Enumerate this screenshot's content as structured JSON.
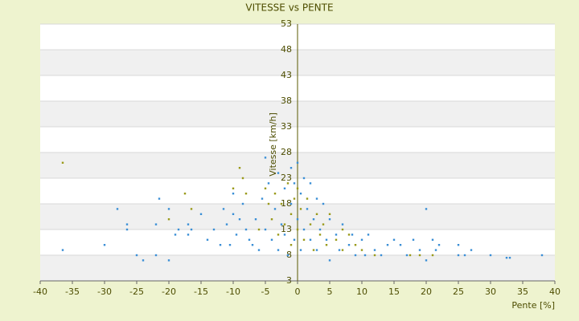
{
  "chart_data": {
    "type": "scatter",
    "title": "VITESSE vs PENTE",
    "x_label": "Pente [%]",
    "y_label": "Vitesse [km/h]",
    "xlim": [
      -40,
      40
    ],
    "xticks": [
      -40,
      -35,
      -30,
      -25,
      -20,
      -15,
      -10,
      -5,
      0,
      5,
      10,
      15,
      20,
      25,
      30,
      35,
      40
    ],
    "ylim": [
      3,
      53
    ],
    "yticks": [
      3,
      8,
      13,
      18,
      23,
      28,
      33,
      38,
      43,
      48,
      53
    ],
    "grid": true,
    "series": [
      {
        "color": "#3a8fd6",
        "x": [
          -36.5,
          -30,
          -28,
          -26.5,
          -26.5,
          -25,
          -24,
          -22,
          -22,
          -21.5,
          -20,
          -20,
          -19,
          -18.5,
          -17,
          -17,
          -16.5,
          -15,
          -14,
          -13,
          -12,
          -11.5,
          -11,
          -10.5,
          -10,
          -10,
          -9.5,
          -9,
          -8.5,
          -8,
          -7.5,
          -7,
          -6.5,
          -6,
          -5.5,
          -5,
          -5,
          -4.5,
          -4,
          -3.5,
          -3,
          -3,
          -2.5,
          -2,
          -2,
          -1.5,
          -1,
          -1,
          -0.5,
          -0.5,
          0,
          0,
          0.5,
          0.5,
          1,
          1,
          1.5,
          2,
          2,
          2.5,
          3,
          3,
          3.5,
          4,
          4.5,
          5,
          5,
          6,
          6.5,
          7,
          8,
          8.5,
          9,
          10,
          10.5,
          11,
          12,
          13,
          14,
          15,
          16,
          17,
          18,
          19,
          20,
          20,
          21,
          21.5,
          22,
          25,
          25,
          26,
          27,
          30,
          32.5,
          33,
          38
        ],
        "values": [
          9,
          10,
          17,
          14,
          13,
          8,
          7,
          14,
          8,
          19,
          7,
          17,
          12,
          13,
          14,
          12,
          13,
          16,
          11,
          13,
          10,
          17,
          14,
          10,
          20,
          16,
          12,
          15,
          18,
          13,
          11,
          10,
          15,
          9,
          19,
          27,
          13,
          22,
          11,
          17,
          24,
          9,
          14,
          21,
          12,
          8,
          25,
          18,
          22,
          11,
          26,
          15,
          20,
          9,
          23,
          13,
          17,
          22,
          11,
          15,
          19,
          9,
          13,
          18,
          11,
          7,
          15,
          12,
          9,
          14,
          10,
          12,
          8,
          11,
          8,
          12,
          9,
          8,
          10,
          11,
          10,
          8,
          11,
          9,
          17,
          7,
          11,
          9,
          10,
          10,
          8,
          8,
          9,
          8,
          7.5,
          7.5,
          8
        ]
      },
      {
        "color": "#9a9a1a",
        "x": [
          -36.5,
          -20,
          -17.5,
          -16.5,
          -10,
          -9,
          -8.5,
          -8,
          -6,
          -5,
          -4.5,
          -4,
          -3.5,
          -3,
          -2.5,
          -2,
          -1.5,
          -1,
          -1,
          -0.5,
          0,
          0,
          0.5,
          1,
          1.5,
          2,
          2.5,
          3,
          3.5,
          4,
          4.5,
          5,
          6,
          7,
          7,
          8,
          9,
          10,
          12,
          17.5,
          19,
          21
        ],
        "values": [
          26,
          15,
          20,
          17,
          21,
          25,
          23,
          20,
          13,
          21,
          18,
          15,
          20,
          12,
          18,
          14,
          22,
          16,
          10,
          19,
          13,
          21,
          17,
          11,
          19,
          14,
          9,
          16,
          12,
          14,
          10,
          16,
          11,
          13,
          9,
          12,
          10,
          9,
          8,
          8,
          8,
          8
        ]
      }
    ]
  }
}
